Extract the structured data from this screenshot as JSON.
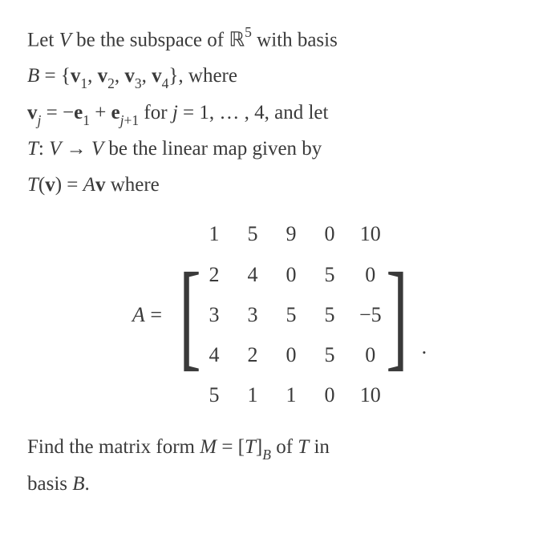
{
  "line1": {
    "t1": "Let ",
    "V": "V",
    "t2": " be the subspace of ",
    "R": "ℝ",
    "exp": "5",
    "t3": " with basis"
  },
  "line2": {
    "B": "B",
    "eq": " = {",
    "v1": "v",
    "s1": "1",
    "c1": ", ",
    "v2": "v",
    "s2": "2",
    "c2": ", ",
    "v3": "v",
    "s3": "3",
    "c3": ", ",
    "v4": "v",
    "s4": "4",
    "close": "}, ",
    "where": "where"
  },
  "line3": {
    "vj": "v",
    "j": "j",
    "eq": " = −",
    "e1": "e",
    "one": "1",
    "plus": " + ",
    "ej": "e",
    "jp1a": "j",
    "jp1b": "+1",
    "for": " for ",
    "jj": "j",
    "eq2": " = 1, … , 4, ",
    "andlet": "and let"
  },
  "line4": {
    "T": "T",
    "colon": ": ",
    "V1": "V",
    "arrow": " → ",
    "V2": "V",
    "rest": " be the linear map given by"
  },
  "line5": {
    "T": "T",
    "open": "(",
    "v": "v",
    "close": ") = ",
    "A": "A",
    "vv": "v",
    "where": " where"
  },
  "matrix": {
    "lhs_A": "A",
    "lhs_eq": " = ",
    "lbracket": "[",
    "rbracket": "]",
    "cells": [
      [
        "1",
        "5",
        "9",
        "0",
        "10"
      ],
      [
        "2",
        "4",
        "0",
        "5",
        "0"
      ],
      [
        "3",
        "3",
        "5",
        "5",
        "−5"
      ],
      [
        "4",
        "2",
        "0",
        "5",
        "0"
      ],
      [
        "5",
        "1",
        "1",
        "0",
        "10"
      ]
    ],
    "period": "."
  },
  "line6": {
    "t1": "Find the matrix form ",
    "M": "M",
    "eq": " = [",
    "T": "T",
    "close": "]",
    "B": "B",
    "of": " of ",
    "TT": "T",
    "in": " in"
  },
  "line7": {
    "basis": "basis ",
    "B": "B",
    "period": "."
  }
}
